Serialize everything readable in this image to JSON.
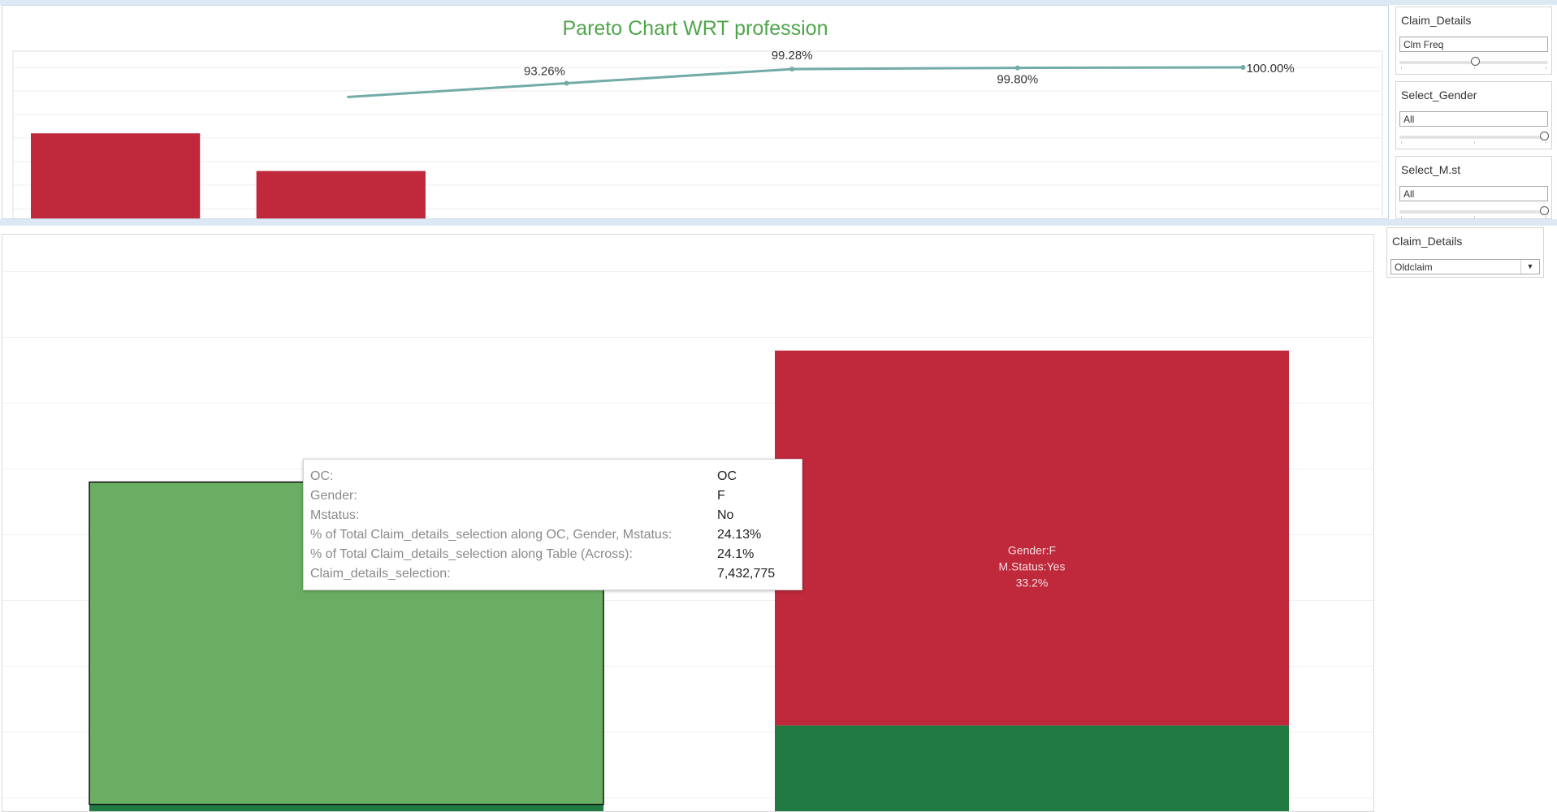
{
  "pareto": {
    "title": "Pareto Chart WRT profession",
    "bar_color": "#c0283c",
    "line_color": "#72aba7"
  },
  "filters": {
    "claim_details_1": {
      "title": "Claim_Details",
      "value": "Clm Freq"
    },
    "select_gender": {
      "title": "Select_Gender",
      "value": "All"
    },
    "select_mst": {
      "title": "Select_M.st",
      "value": "All"
    },
    "claim_details_2": {
      "title": "Claim_Details",
      "value": "Oldclaim"
    }
  },
  "tooltip": {
    "rows": [
      {
        "label": "OC:",
        "value": "OC"
      },
      {
        "label": "Gender:",
        "value": "F"
      },
      {
        "label": "Mstatus:",
        "value": "No"
      },
      {
        "label": "% of Total Claim_details_selection along OC, Gender, Mstatus:",
        "value": "24.13%"
      },
      {
        "label": "% of Total Claim_details_selection along Table (Across):",
        "value": "24.1%"
      },
      {
        "label": "Claim_details_selection:",
        "value": "7,432,775"
      }
    ]
  },
  "chart_data": [
    {
      "type": "bar",
      "title": "Pareto Chart WRT profession",
      "categories": [
        "",
        "",
        "",
        "",
        "",
        ""
      ],
      "bar_values": [
        72,
        56,
        null,
        null,
        null,
        null
      ],
      "line_series": {
        "values": [
          null,
          null,
          93.26,
          99.28,
          99.8,
          100.0
        ],
        "labels": [
          "",
          "",
          "93.26%",
          "99.28%",
          "99.80%",
          "100.00%"
        ]
      },
      "ylim": [
        20,
        100
      ],
      "grid": true
    },
    {
      "type": "bar",
      "stacked": true,
      "categories": [
        "",
        ""
      ],
      "ylim": [
        0,
        100
      ],
      "grid": true,
      "columns": [
        {
          "segments": [
            {
              "bottom": 0,
              "top": 19,
              "color": "#217a42",
              "label": ""
            },
            {
              "bottom": 19,
              "top": 68,
              "color": "#6aae64",
              "label": ""
            }
          ]
        },
        {
          "segments": [
            {
              "bottom": 0,
              "top": 31,
              "color": "#217a42",
              "label": ""
            },
            {
              "bottom": 31,
              "top": 88,
              "color": "#c0283c",
              "label": "Gender:F\nM.Status:Yes\n33.2%"
            }
          ]
        }
      ]
    }
  ]
}
